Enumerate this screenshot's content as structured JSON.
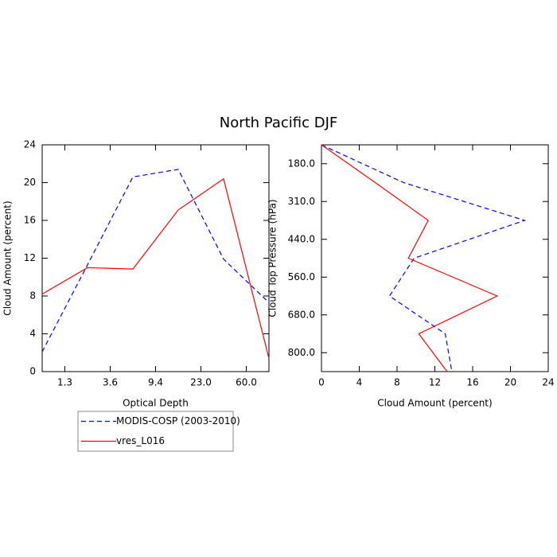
{
  "title": "North Pacific DJF",
  "chart_data": [
    {
      "type": "line",
      "orientation": "vertical",
      "x": [
        0,
        1,
        2,
        3,
        4,
        5
      ],
      "xlim": [
        0,
        5
      ],
      "xticks": [
        {
          "value": 0.5,
          "label": "1.3"
        },
        {
          "value": 1.5,
          "label": "3.6"
        },
        {
          "value": 2.5,
          "label": "9.4"
        },
        {
          "value": 3.5,
          "label": "23.0"
        },
        {
          "value": 4.5,
          "label": "60.0"
        }
      ],
      "ylim": [
        0,
        24
      ],
      "yticks": [
        0,
        4,
        8,
        12,
        16,
        20,
        24
      ],
      "xlabel": "Optical Depth",
      "ylabel": "Cloud Amount (percent)",
      "legend": "below",
      "series": [
        {
          "name": "MODIS-COSP (2003-2010)",
          "color": "#0000ff",
          "dash": true,
          "values": [
            2.1,
            11.3,
            20.6,
            21.4,
            11.9,
            7.3
          ]
        },
        {
          "name": "vres_L016",
          "color": "#ff0000",
          "dash": false,
          "values": [
            8.2,
            11.0,
            10.85,
            17.1,
            20.4,
            1.4
          ]
        }
      ]
    },
    {
      "type": "line",
      "orientation": "horizontal",
      "y": [
        0,
        1,
        2,
        3,
        4,
        5,
        6
      ],
      "ylim": [
        6,
        0
      ],
      "yticks": [
        {
          "value": 0.5,
          "label": "180.0"
        },
        {
          "value": 1.5,
          "label": "310.0"
        },
        {
          "value": 2.5,
          "label": "440.0"
        },
        {
          "value": 3.5,
          "label": "560.0"
        },
        {
          "value": 4.5,
          "label": "680.0"
        },
        {
          "value": 5.5,
          "label": "800.0"
        }
      ],
      "xlim": [
        0,
        24
      ],
      "xticks": [
        0,
        4,
        8,
        12,
        16,
        20,
        24
      ],
      "xlabel": "Cloud Amount (percent)",
      "ylabel": "Cloud Top Pressure (hPa)",
      "series": [
        {
          "color": "#0000ff",
          "dash": true,
          "values": [
            0,
            8.7,
            21.5,
            9.8,
            7.2,
            13.1,
            13.8
          ]
        },
        {
          "color": "#ff0000",
          "dash": false,
          "values": [
            0,
            5.7,
            11.3,
            9.2,
            18.6,
            10.3,
            13.3
          ]
        }
      ]
    }
  ]
}
